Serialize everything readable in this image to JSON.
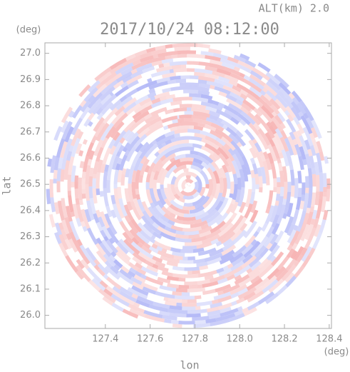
{
  "chart_data": {
    "type": "radar-ppi",
    "title": "2017/10/24 08:12:00",
    "altitude_label": "ALT(km) 2.0",
    "xlabel": "lon",
    "ylabel": "lat",
    "x_unit": "(deg)",
    "y_unit": "(deg)",
    "xlim": [
      127.13,
      128.41
    ],
    "ylim": [
      25.95,
      27.04
    ],
    "xticks": [
      127.4,
      127.6,
      127.8,
      {
        "value": 128,
        "label": "128.0"
      },
      128.2,
      128.4
    ],
    "yticks": [
      {
        "value": 26,
        "label": "26.0"
      },
      26.1,
      26.2,
      26.3,
      26.4,
      26.5,
      26.6,
      26.7,
      26.8,
      26.9,
      {
        "value": 27,
        "label": "27.0"
      }
    ]
  }
}
